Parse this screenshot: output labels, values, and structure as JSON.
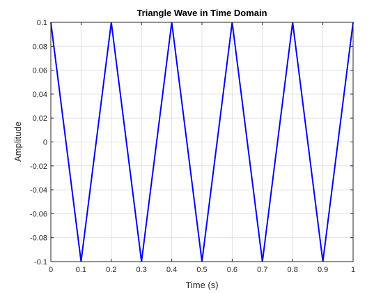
{
  "chart_data": {
    "type": "line",
    "title": "Triangle Wave in Time Domain",
    "xlabel": "Time (s)",
    "ylabel": "Amplitude",
    "xlim": [
      0,
      1
    ],
    "ylim": [
      -0.1,
      0.1
    ],
    "grid": true,
    "x_ticks": [
      0,
      0.1,
      0.2,
      0.3,
      0.4,
      0.5,
      0.6,
      0.7,
      0.8,
      0.9,
      1
    ],
    "x_tick_labels": [
      "0",
      "0.1",
      "0.2",
      "0.3",
      "0.4",
      "0.5",
      "0.6",
      "0.7",
      "0.8",
      "0.9",
      "1"
    ],
    "y_ticks": [
      0.1,
      0.08,
      0.06,
      0.04,
      0.02,
      0,
      -0.02,
      -0.04,
      -0.06,
      -0.08,
      -0.1
    ],
    "y_tick_labels": [
      "0.1",
      "0.08",
      "0.06",
      "0.04",
      "0.02",
      "0",
      "-0.02",
      "-0.04",
      "-0.06",
      "-0.08",
      "-0.1"
    ],
    "series": [
      {
        "color": "#0000ff",
        "x": [
          0,
          0.1,
          0.2,
          0.3,
          0.4,
          0.5,
          0.6,
          0.7,
          0.8,
          0.9,
          1
        ],
        "y": [
          0.1,
          -0.1,
          0.1,
          -0.1,
          0.1,
          -0.1,
          0.1,
          -0.1,
          0.1,
          -0.1,
          0.1
        ]
      }
    ]
  }
}
